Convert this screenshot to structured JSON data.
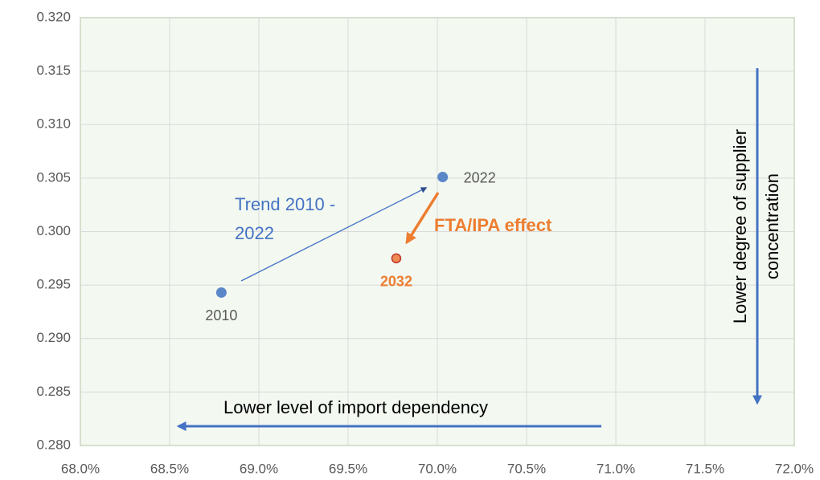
{
  "chart_data": {
    "type": "scatter",
    "x": [
      68.79,
      70.03,
      69.77
    ],
    "values": [
      0.2943,
      0.3051,
      0.2975
    ],
    "point_labels": [
      "2010",
      "2022",
      "2032"
    ],
    "colors": [
      "#5b87c9",
      "#5b87c9",
      "#f08a55"
    ],
    "xlim": [
      68.0,
      72.0
    ],
    "xticks": [
      {
        "value": 68.0,
        "label": "68.0%"
      },
      {
        "value": 68.5,
        "label": "68.5%"
      },
      {
        "value": 69.0,
        "label": "69.0%"
      },
      {
        "value": 69.5,
        "label": "69.5%"
      },
      {
        "value": 70.0,
        "label": "70.0%"
      },
      {
        "value": 70.5,
        "label": "70.5%"
      },
      {
        "value": 71.0,
        "label": "71.0%"
      },
      {
        "value": 71.5,
        "label": "71.5%"
      },
      {
        "value": 72.0,
        "label": "72.0%"
      }
    ],
    "ylim": [
      0.28,
      0.32
    ],
    "yticks": [
      {
        "value": 0.28,
        "label": "0.280"
      },
      {
        "value": 0.285,
        "label": "0.285"
      },
      {
        "value": 0.29,
        "label": "0.290"
      },
      {
        "value": 0.295,
        "label": "0.295"
      },
      {
        "value": 0.3,
        "label": "0.300"
      },
      {
        "value": 0.305,
        "label": "0.305"
      },
      {
        "value": 0.31,
        "label": "0.310"
      },
      {
        "value": 0.315,
        "label": "0.315"
      },
      {
        "value": 0.32,
        "label": "0.320"
      }
    ],
    "grid": true,
    "annotations": {
      "trend": [
        "Trend 2010 -",
        "2022"
      ],
      "effect": "FTA/IPA effect",
      "import": "Lower level of import dependency",
      "supplier": [
        "Lower degree of supplier",
        "concentration"
      ]
    }
  }
}
